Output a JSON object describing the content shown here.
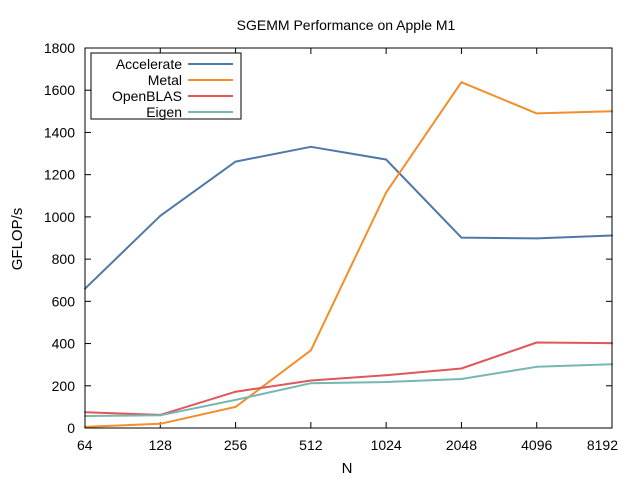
{
  "chart_data": {
    "type": "line",
    "title": "SGEMM Performance on Apple M1",
    "xlabel": "N",
    "ylabel": "GFLOP/s",
    "x_scale": "log2",
    "categories": [
      "64",
      "128",
      "256",
      "512",
      "1024",
      "2048",
      "4096",
      "8192"
    ],
    "x": [
      64,
      128,
      256,
      512,
      1024,
      2048,
      4096,
      8192
    ],
    "ylim": [
      0,
      1800
    ],
    "yticks": [
      0,
      200,
      400,
      600,
      800,
      1000,
      1200,
      1400,
      1600,
      1800
    ],
    "grid": false,
    "legend_position": "top-left",
    "series": [
      {
        "name": "Accelerate",
        "color": "#4e79a7",
        "values": [
          660,
          1005,
          1262,
          1332,
          1272,
          902,
          898,
          912
        ]
      },
      {
        "name": "Metal",
        "color": "#f28e2b",
        "values": [
          5,
          20,
          100,
          368,
          1115,
          1638,
          1490,
          1500
        ]
      },
      {
        "name": "OpenBLAS",
        "color": "#e15759",
        "values": [
          75,
          62,
          172,
          225,
          250,
          282,
          405,
          402
        ]
      },
      {
        "name": "Eigen",
        "color": "#76b7b2",
        "values": [
          57,
          60,
          133,
          212,
          218,
          232,
          290,
          302
        ]
      }
    ]
  }
}
